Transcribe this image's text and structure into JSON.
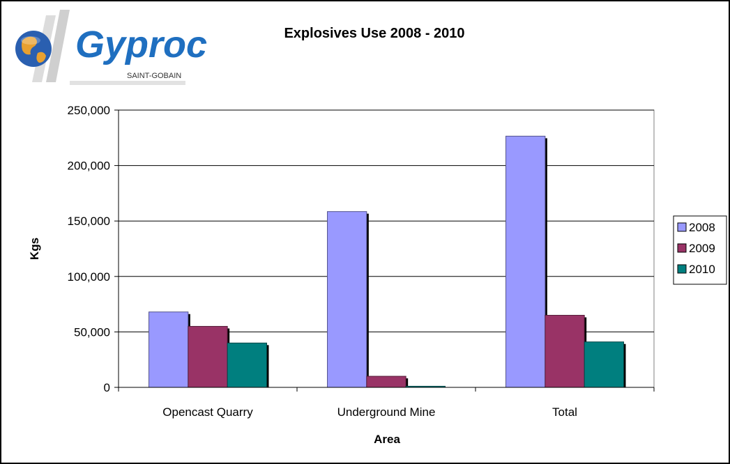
{
  "logo": {
    "brand": "Gyproc",
    "sub": "SAINT-GOBAIN",
    "colors": {
      "brand_blue": "#1f6fc0",
      "globe_blue": "#2a5fb0",
      "stripe_gray": "#d8d8d8"
    }
  },
  "chart_data": {
    "type": "bar",
    "title": "Explosives Use 2008 - 2010",
    "xlabel": "Area",
    "ylabel": "Kgs",
    "categories": [
      "Opencast Quarry",
      "Underground Mine",
      "Total"
    ],
    "series": [
      {
        "name": "2008",
        "values": [
          68000,
          158500,
          226500
        ],
        "color": "#9999ff"
      },
      {
        "name": "2009",
        "values": [
          55000,
          10000,
          65000
        ],
        "color": "#993366"
      },
      {
        "name": "2010",
        "values": [
          40000,
          1000,
          41000
        ],
        "color": "#007f7f"
      }
    ],
    "ylim": [
      0,
      250000
    ],
    "yticks": [
      0,
      50000,
      100000,
      150000,
      200000,
      250000
    ],
    "ytick_labels": [
      "0",
      "50,000",
      "100,000",
      "150,000",
      "200,000",
      "250,000"
    ],
    "grid": true,
    "legend_position": "right"
  }
}
